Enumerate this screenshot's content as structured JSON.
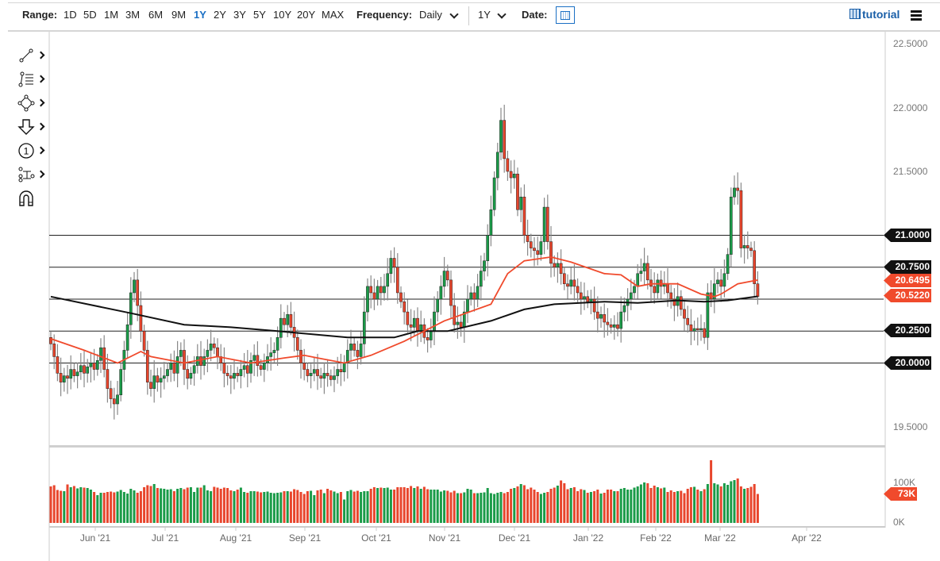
{
  "toolbar": {
    "range_label": "Range:",
    "ranges": [
      "1D",
      "5D",
      "1M",
      "3M",
      "6M",
      "9M",
      "1Y",
      "2Y",
      "3Y",
      "5Y",
      "10Y",
      "20Y",
      "MAX"
    ],
    "active_range": "1Y",
    "frequency_label": "Frequency:",
    "frequency_value": "Daily",
    "period_value": "1Y",
    "date_label": "Date:",
    "calendar_icon": "calendar-icon",
    "tutorial_label": "tutorial",
    "tutorial_icon": "film-icon",
    "menu_icon": "hamburger-icon"
  },
  "drawing_tools": [
    {
      "icon": "trend-line-icon"
    },
    {
      "icon": "fibonacci-icon"
    },
    {
      "icon": "shape-icon"
    },
    {
      "icon": "arrow-down-icon"
    },
    {
      "icon": "annotation-number-icon",
      "text": "1"
    },
    {
      "icon": "measure-icon"
    },
    {
      "icon": "magnet-icon"
    }
  ],
  "chart_data": {
    "type": "candlestick",
    "colors": {
      "up": "#1a9b48",
      "down": "#e8452c",
      "ma_fast": "#f04a2c",
      "ma_slow": "#111111",
      "level_lines": "#222222"
    },
    "y_ticks": [
      "22.5000",
      "22.0000",
      "21.5000",
      "19.5000"
    ],
    "ylim": [
      19.35,
      22.6
    ],
    "x_ticks": [
      "Jun '21",
      "Jul '21",
      "Aug '21",
      "Sep '21",
      "Oct '21",
      "Nov '21",
      "Dec '21",
      "Jan '22",
      "Feb '22",
      "Mar '22",
      "Apr '22"
    ],
    "horizontal_levels": [
      21.0,
      20.75,
      20.5,
      20.25,
      20.0
    ],
    "level_labels": [
      "21.0000",
      "20.7500",
      "20.2500",
      "20.0000"
    ],
    "price_tags": [
      {
        "label": "20.6495",
        "value": 20.6495,
        "color": "#f04a2c"
      },
      {
        "label": "20.5220",
        "value": 20.522,
        "color": "#f04a2c"
      }
    ],
    "close": [
      20.15,
      20.05,
      19.92,
      19.85,
      19.9,
      19.88,
      19.95,
      19.9,
      19.93,
      19.98,
      19.92,
      19.97,
      20.0,
      19.95,
      20.02,
      20.12,
      19.95,
      19.8,
      19.72,
      19.68,
      19.75,
      19.95,
      20.1,
      20.3,
      20.55,
      20.65,
      20.45,
      20.25,
      20.1,
      19.85,
      19.8,
      19.9,
      19.85,
      19.88,
      19.9,
      19.95,
      20.0,
      19.92,
      20.05,
      20.1,
      19.95,
      19.88,
      19.92,
      19.98,
      20.05,
      19.98,
      20.05,
      20.1,
      20.15,
      20.12,
      20.05,
      20.0,
      19.92,
      19.9,
      19.88,
      19.92,
      19.9,
      19.95,
      19.98,
      19.92,
      20.02,
      20.06,
      19.98,
      19.95,
      20.0,
      20.05,
      20.08,
      20.1,
      20.2,
      20.35,
      20.3,
      20.38,
      20.28,
      20.2,
      20.1,
      20.0,
      19.95,
      19.9,
      19.92,
      19.95,
      19.9,
      19.88,
      19.92,
      19.9,
      19.87,
      19.9,
      19.95,
      19.93,
      20.0,
      20.1,
      20.15,
      20.1,
      20.05,
      20.15,
      20.4,
      20.6,
      20.55,
      20.5,
      20.6,
      20.55,
      20.6,
      20.7,
      20.82,
      20.75,
      20.55,
      20.48,
      20.4,
      20.3,
      20.28,
      20.35,
      20.25,
      20.3,
      20.2,
      20.18,
      20.25,
      20.4,
      20.5,
      20.6,
      20.72,
      20.65,
      20.45,
      20.3,
      20.32,
      20.28,
      20.4,
      20.5,
      20.55,
      20.5,
      20.6,
      20.72,
      20.8,
      21.0,
      21.2,
      21.45,
      21.65,
      21.9,
      21.6,
      21.5,
      21.45,
      21.48,
      21.2,
      21.3,
      21.0,
      20.95,
      20.9,
      20.88,
      20.85,
      20.95,
      21.22,
      20.95,
      20.78,
      20.75,
      20.78,
      20.7,
      20.62,
      20.6,
      20.65,
      20.6,
      20.55,
      20.5,
      20.52,
      20.48,
      20.5,
      20.4,
      20.35,
      20.38,
      20.32,
      20.3,
      20.28,
      20.3,
      20.27,
      20.4,
      20.45,
      20.5,
      20.55,
      20.6,
      20.7,
      20.72,
      20.78,
      20.65,
      20.6,
      20.55,
      20.65,
      20.6,
      20.62,
      20.55,
      20.5,
      20.45,
      20.52,
      20.42,
      20.35,
      20.3,
      20.25,
      20.27,
      20.26,
      20.27,
      20.2,
      20.55,
      20.5,
      20.62,
      20.65,
      20.6,
      20.7,
      20.85,
      21.3,
      21.37,
      21.35,
      20.9,
      20.92,
      20.9,
      20.88,
      20.62,
      20.52
    ],
    "ma_fast": [
      [
        0,
        20.19
      ],
      [
        10,
        20.1
      ],
      [
        20,
        20.0
      ],
      [
        27,
        20.09
      ],
      [
        30,
        20.05
      ],
      [
        40,
        20.0
      ],
      [
        50,
        20.05
      ],
      [
        60,
        20.0
      ],
      [
        70,
        20.04
      ],
      [
        76,
        20.06
      ],
      [
        80,
        20.04
      ],
      [
        88,
        20.0
      ],
      [
        96,
        20.06
      ],
      [
        106,
        20.17
      ],
      [
        118,
        20.33
      ],
      [
        132,
        20.46
      ],
      [
        137,
        20.7
      ],
      [
        142,
        20.8
      ],
      [
        150,
        20.83
      ],
      [
        156,
        20.79
      ],
      [
        166,
        20.7
      ],
      [
        171,
        20.69
      ],
      [
        176,
        20.6
      ],
      [
        180,
        20.62
      ],
      [
        188,
        20.62
      ],
      [
        195,
        20.54
      ],
      [
        199,
        20.52
      ],
      [
        201,
        20.54
      ],
      [
        206,
        20.62
      ],
      [
        212,
        20.6495
      ]
    ],
    "ma_slow": [
      [
        0,
        20.52
      ],
      [
        24,
        20.39
      ],
      [
        40,
        20.3
      ],
      [
        54,
        20.28
      ],
      [
        68,
        20.25
      ],
      [
        89,
        20.2
      ],
      [
        103,
        20.2
      ],
      [
        110,
        20.25
      ],
      [
        119,
        20.25
      ],
      [
        132,
        20.33
      ],
      [
        142,
        20.42
      ],
      [
        151,
        20.46
      ],
      [
        166,
        20.48
      ],
      [
        176,
        20.47
      ],
      [
        188,
        20.49
      ],
      [
        196,
        20.48
      ],
      [
        203,
        20.49
      ],
      [
        212,
        20.522
      ]
    ],
    "volume": {
      "y_ticks": [
        "100K",
        "0K"
      ],
      "last_label": "73K",
      "values_k": [
        92,
        95,
        83,
        81,
        80,
        97,
        90,
        93,
        87,
        90,
        89,
        88,
        84,
        78,
        70,
        76,
        76,
        78,
        79,
        77,
        79,
        83,
        78,
        74,
        86,
        82,
        76,
        80,
        90,
        95,
        93,
        98,
        88,
        87,
        86,
        84,
        85,
        80,
        86,
        88,
        85,
        89,
        90,
        78,
        89,
        89,
        95,
        82,
        80,
        91,
        89,
        86,
        89,
        88,
        82,
        80,
        84,
        89,
        78,
        76,
        80,
        80,
        79,
        77,
        78,
        79,
        76,
        75,
        76,
        77,
        80,
        80,
        79,
        85,
        83,
        78,
        73,
        80,
        81,
        70,
        82,
        84,
        75,
        86,
        82,
        79,
        75,
        78,
        59,
        80,
        83,
        79,
        81,
        78,
        80,
        80,
        86,
        90,
        88,
        89,
        88,
        89,
        84,
        84,
        90,
        90,
        90,
        88,
        93,
        88,
        92,
        86,
        91,
        85,
        84,
        84,
        84,
        79,
        82,
        81,
        77,
        81,
        75,
        75,
        77,
        86,
        84,
        75,
        75,
        76,
        77,
        88,
        75,
        73,
        76,
        78,
        75,
        78,
        86,
        88,
        92,
        98,
        95,
        85,
        89,
        84,
        78,
        73,
        76,
        78,
        86,
        89,
        94,
        107,
        100,
        85,
        88,
        90,
        80,
        85,
        83,
        76,
        78,
        80,
        84,
        74,
        76,
        84,
        84,
        80,
        80,
        86,
        88,
        84,
        84,
        89,
        92,
        97,
        102,
        100,
        88,
        94,
        90,
        87,
        89,
        78,
        82,
        78,
        80,
        81,
        75,
        86,
        90,
        91,
        84,
        80,
        85,
        98,
        158,
        100,
        97,
        92,
        100,
        96,
        105,
        108,
        112,
        92,
        86,
        88,
        91,
        98,
        73
      ]
    }
  }
}
